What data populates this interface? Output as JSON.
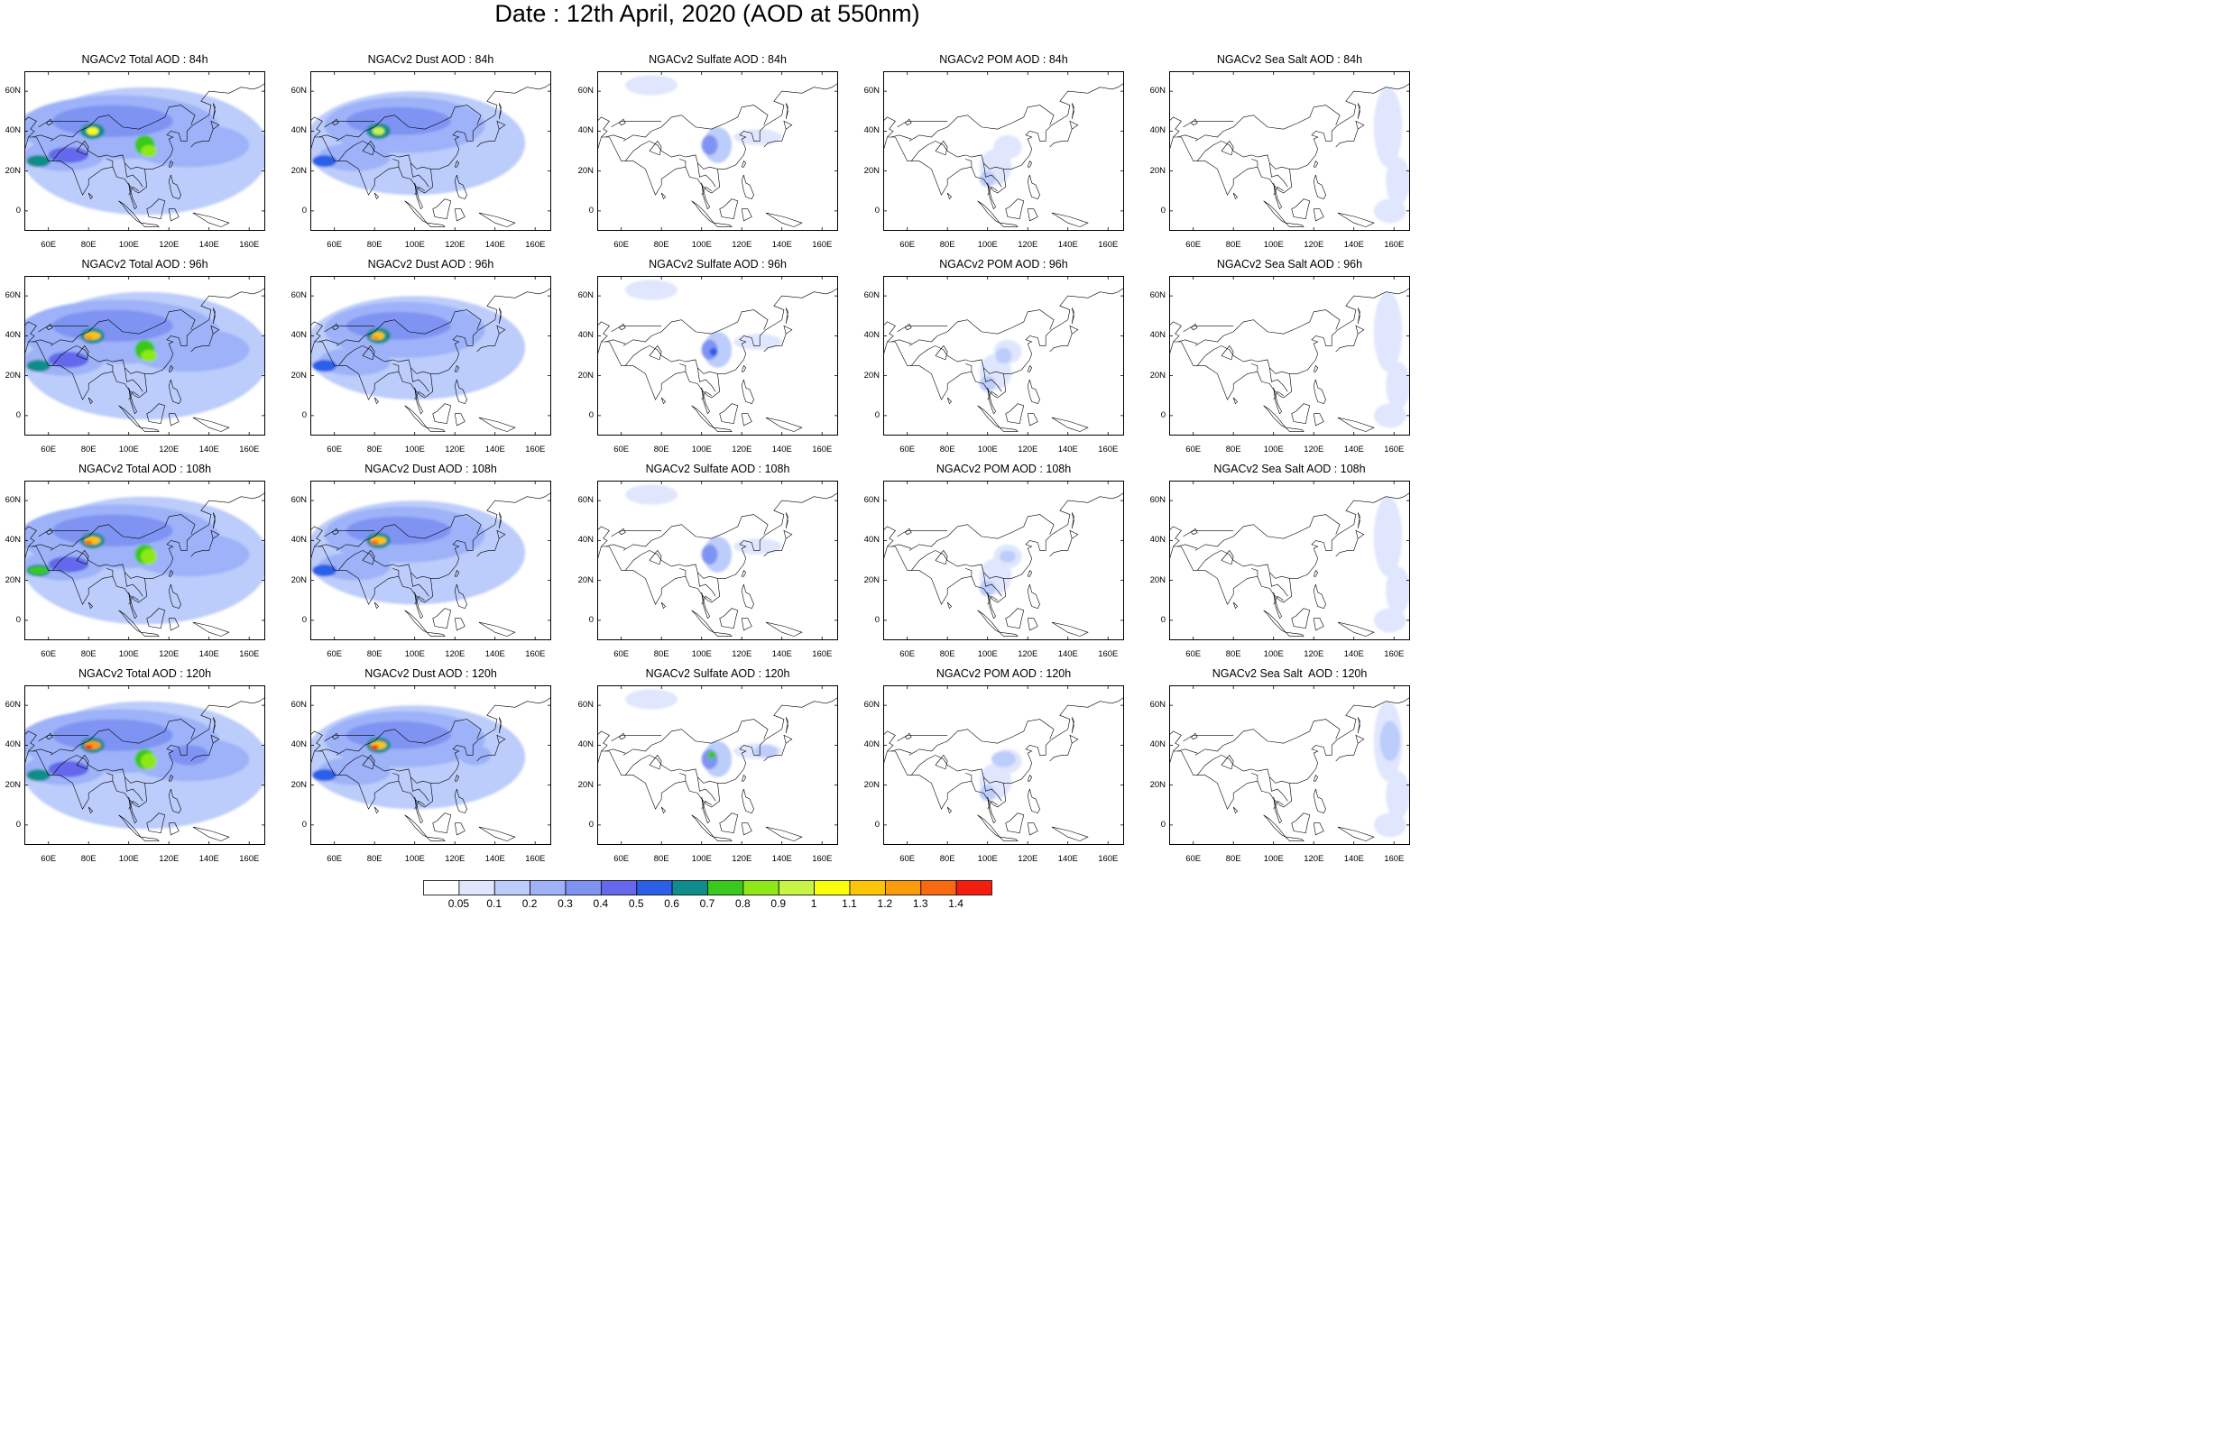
{
  "title": "Date : 12th April, 2020 (AOD at 550nm)",
  "x_ticks": [
    "60E",
    "80E",
    "100E",
    "120E",
    "140E",
    "160E"
  ],
  "y_ticks": [
    "60N",
    "40N",
    "20N",
    "0"
  ],
  "lon_range": [
    48,
    168
  ],
  "lat_range": [
    -10,
    70
  ],
  "rows": [
    {
      "lead": "84h",
      "panels": [
        {
          "id": "total",
          "title": "NGACv2 Total AOD : 84h"
        },
        {
          "id": "dust",
          "title": "NGACv2 Dust AOD : 84h"
        },
        {
          "id": "sulfate",
          "title": "NGACv2 Sulfate AOD : 84h"
        },
        {
          "id": "pom",
          "title": "NGACv2 POM AOD : 84h"
        },
        {
          "id": "seasalt",
          "title": "NGACv2 Sea Salt AOD : 84h"
        }
      ]
    },
    {
      "lead": "96h",
      "panels": [
        {
          "id": "total",
          "title": "NGACv2 Total AOD : 96h"
        },
        {
          "id": "dust",
          "title": "NGACv2 Dust AOD : 96h"
        },
        {
          "id": "sulfate",
          "title": "NGACv2 Sulfate AOD : 96h"
        },
        {
          "id": "pom",
          "title": "NGACv2 POM AOD : 96h"
        },
        {
          "id": "seasalt",
          "title": "NGACv2 Sea Salt AOD : 96h"
        }
      ]
    },
    {
      "lead": "108h",
      "panels": [
        {
          "id": "total",
          "title": "NGACv2 Total AOD : 108h"
        },
        {
          "id": "dust",
          "title": "NGACv2 Dust AOD : 108h"
        },
        {
          "id": "sulfate",
          "title": "NGACv2 Sulfate AOD : 108h"
        },
        {
          "id": "pom",
          "title": "NGACv2 POM AOD : 108h"
        },
        {
          "id": "seasalt",
          "title": "NGACv2 Sea Salt AOD : 108h"
        }
      ]
    },
    {
      "lead": "120h",
      "panels": [
        {
          "id": "total",
          "title": "NGACv2 Total AOD : 120h"
        },
        {
          "id": "dust",
          "title": "NGACv2 Dust AOD : 120h"
        },
        {
          "id": "sulfate",
          "title": "NGACv2 Sulfate AOD : 120h"
        },
        {
          "id": "pom",
          "title": "NGACv2 POM AOD : 120h"
        },
        {
          "id": "seasalt",
          "title": "NGACv2 Sea Salt  AOD : 120h"
        }
      ]
    }
  ],
  "colorbar": {
    "labels": [
      "0.05",
      "0.1",
      "0.2",
      "0.3",
      "0.4",
      "0.5",
      "0.6",
      "0.7",
      "0.8",
      "0.9",
      "1",
      "1.1",
      "1.2",
      "1.3",
      "1.4"
    ],
    "colors": [
      "#ffffff",
      "#dfe6fd",
      "#bcccfb",
      "#9db2f8",
      "#7f93f3",
      "#6468ec",
      "#2c5fe8",
      "#0f8d8c",
      "#3ac81f",
      "#8ee818",
      "#c8f545",
      "#fafd0c",
      "#fcc509",
      "#fb9b0e",
      "#f86a10",
      "#f51c10"
    ]
  }
}
